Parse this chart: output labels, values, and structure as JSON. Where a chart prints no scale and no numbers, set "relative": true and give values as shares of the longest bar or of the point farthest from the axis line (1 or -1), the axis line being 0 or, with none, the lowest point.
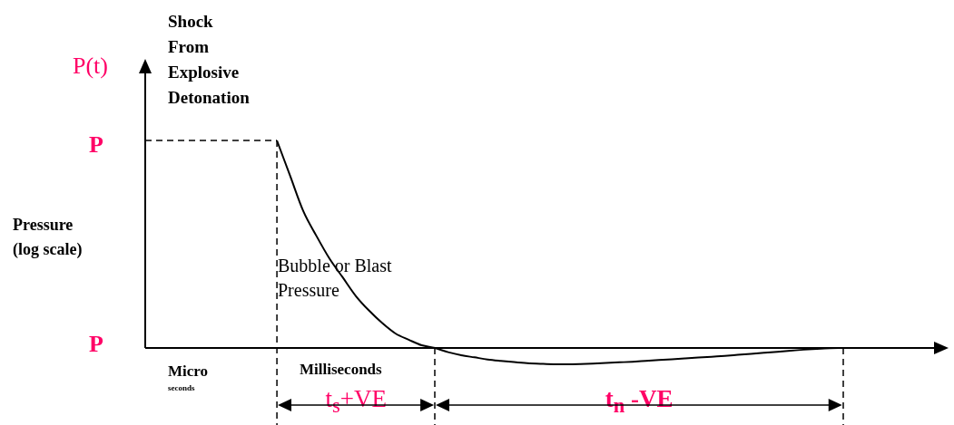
{
  "chart_data": {
    "type": "line",
    "relative": true,
    "ylabel": "Pressure (log scale)",
    "categories": [
      null,
      null,
      null,
      null,
      null,
      null,
      null,
      null,
      null,
      null,
      null,
      null,
      null,
      null,
      null,
      null,
      null,
      null,
      null,
      null,
      null,
      null,
      null,
      null,
      null,
      null,
      null,
      null,
      null,
      null,
      null,
      null,
      null,
      null,
      null,
      null,
      null,
      null,
      null,
      null,
      null,
      null,
      null,
      null,
      null,
      null,
      null,
      null,
      null,
      null,
      null,
      null,
      null,
      null,
      null,
      null,
      null,
      null,
      null,
      null,
      null,
      null
    ],
    "series": [
      {
        "color": "#000000",
        "line_style": "solid",
        "values": [
          null,
          null,
          null,
          null,
          null,
          null,
          null,
          null,
          null,
          null,
          1,
          0.83,
          0.66,
          0.54,
          0.43,
          0.34,
          0.25,
          0.18,
          0.12,
          0.07,
          0.04,
          0.013,
          0,
          -0.02,
          -0.035,
          -0.045,
          -0.055,
          -0.062,
          -0.068,
          -0.073,
          -0.076,
          -0.078,
          -0.078,
          -0.077,
          -0.075,
          -0.072,
          -0.069,
          -0.066,
          -0.062,
          -0.058,
          -0.054,
          -0.05,
          -0.046,
          -0.042,
          -0.038,
          -0.033,
          -0.028,
          -0.023,
          -0.018,
          -0.013,
          -0.008,
          -0.004,
          -0.001,
          0,
          null,
          null,
          null,
          null,
          null,
          null,
          null,
          null
        ]
      },
      {
        "color": "#000000",
        "line_style": "dashed",
        "values": [
          1,
          1,
          1,
          1,
          1,
          1,
          1,
          1,
          1,
          1,
          1,
          null,
          null,
          null,
          null,
          null,
          null,
          null,
          null,
          null,
          null,
          null,
          null,
          null,
          null,
          null,
          null,
          null,
          null,
          null,
          null,
          null,
          null,
          null,
          null,
          null,
          null,
          null,
          null,
          null,
          null,
          null,
          null,
          null,
          null,
          null,
          null,
          null,
          null,
          null,
          null,
          null,
          null,
          null,
          null,
          null,
          null,
          null,
          null,
          null,
          null,
          null
        ]
      }
    ],
    "annotations": [
      "Shock From Explosive Detonation",
      "P(t)",
      "P",
      "P",
      "Bubble or Blast Pressure",
      "Micro",
      "seconds",
      "Milliseconds",
      "t$_{s}$+VE",
      "t$_{n}$ -VE"
    ]
  }
}
